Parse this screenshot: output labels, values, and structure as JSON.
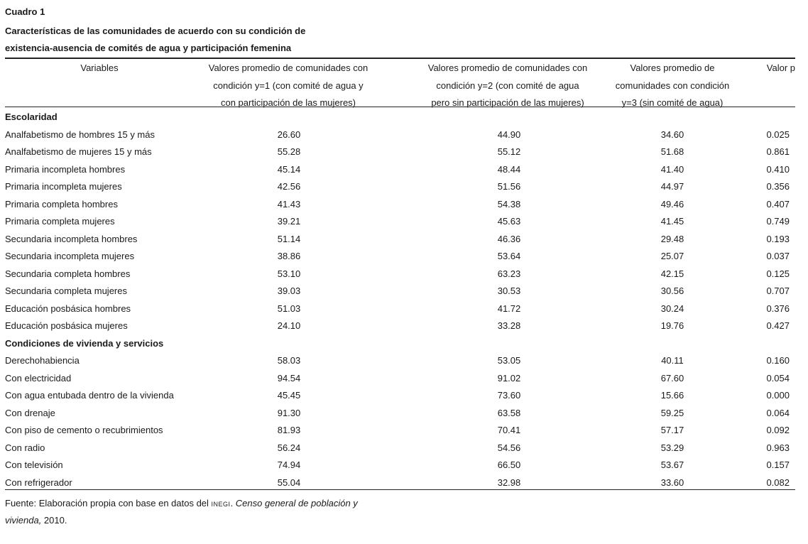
{
  "table": {
    "label": "Cuadro 1",
    "title_line1": "Características de las comunidades de acuerdo con su condición de",
    "title_line2": "existencia-ausencia de comités de agua y participación femenina",
    "headers": [
      [
        "Variables"
      ],
      [
        "Valores promedio de comunidades con",
        "condición y=1 (con comité de agua y",
        "con participación de las mujeres)"
      ],
      [
        "Valores promedio de comunidades  con",
        "condición y=2 (con comité de agua",
        "pero sin participación de las mujeres)"
      ],
      [
        "Valores promedio de",
        "comunidades con condición",
        "y=3  (sin comité de agua)"
      ],
      [
        "Valor p"
      ]
    ],
    "sections": [
      {
        "title": "Escolaridad",
        "rows": [
          [
            "Analfabetismo de hombres 15 y más",
            "26.60",
            "44.90",
            "34.60",
            "0.025"
          ],
          [
            "Analfabetismo de mujeres 15 y más",
            "55.28",
            "55.12",
            "51.68",
            "0.861"
          ],
          [
            "Primaria incompleta hombres",
            "45.14",
            "48.44",
            "41.40",
            "0.410"
          ],
          [
            "Primaria incompleta mujeres",
            "42.56",
            "51.56",
            "44.97",
            "0.356"
          ],
          [
            "Primaria completa hombres",
            "41.43",
            "54.38",
            "49.46",
            "0.407"
          ],
          [
            "Primaria completa mujeres",
            "39.21",
            "45.63",
            "41.45",
            "0.749"
          ],
          [
            "Secundaria incompleta hombres",
            "51.14",
            "46.36",
            "29.48",
            "0.193"
          ],
          [
            "Secundaria incompleta mujeres",
            "38.86",
            "53.64",
            "25.07",
            "0.037"
          ],
          [
            "Secundaria completa hombres",
            "53.10",
            "63.23",
            "42.15",
            "0.125"
          ],
          [
            "Secundaria completa mujeres",
            "39.03",
            "30.53",
            "30.56",
            "0.707"
          ],
          [
            "Educación posbásica hombres",
            "51.03",
            "41.72",
            "30.24",
            "0.376"
          ],
          [
            "Educación posbásica mujeres",
            "24.10",
            "33.28",
            "19.76",
            "0.427"
          ]
        ]
      },
      {
        "title": "Condiciones de vivienda y servicios",
        "rows": [
          [
            "Derechohabiencia",
            "58.03",
            "53.05",
            "40.11",
            "0.160"
          ],
          [
            "Con electricidad",
            "94.54",
            "91.02",
            "67.60",
            "0.054"
          ],
          [
            "Con agua entubada dentro de la vivienda",
            "45.45",
            "73.60",
            "15.66",
            "0.000"
          ],
          [
            "Con drenaje",
            "91.30",
            "63.58",
            "59.25",
            "0.064"
          ],
          [
            "Con piso de cemento o recubrimientos",
            "81.93",
            "70.41",
            "57.17",
            "0.092"
          ],
          [
            "Con radio",
            "56.24",
            "54.56",
            "53.29",
            "0.963"
          ],
          [
            "Con televisión",
            "74.94",
            "66.50",
            "53.67",
            "0.157"
          ],
          [
            "Con refrigerador",
            "55.04",
            "32.98",
            "33.60",
            "0.082"
          ]
        ]
      }
    ],
    "source": {
      "prefix": "Fuente: Elaboración propia con base en datos del ",
      "org": "INEGI",
      "sep": ". ",
      "italic1": "Censo general de población y",
      "italic2": "vivienda,",
      "suffix": " 2010."
    }
  }
}
